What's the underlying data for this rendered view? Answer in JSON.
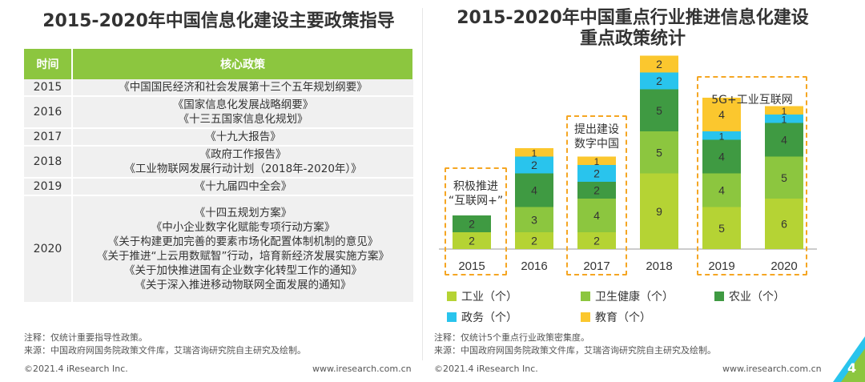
{
  "left": {
    "title": "2015-2020年中国信息化建设主要政策指导",
    "table": {
      "headers": [
        "时间",
        "核心政策"
      ],
      "rows": [
        {
          "year": "2015",
          "policies": [
            "《中国国民经济和社会发展第十三个五年规划纲要》"
          ]
        },
        {
          "year": "2016",
          "policies": [
            "《国家信息化发展战略纲要》",
            "《十三五国家信息化规划》"
          ]
        },
        {
          "year": "2017",
          "policies": [
            "《十九大报告》"
          ]
        },
        {
          "year": "2018",
          "policies": [
            "《政府工作报告》",
            "《工业物联网发展行动计划（2018年-2020年）》"
          ]
        },
        {
          "year": "2019",
          "policies": [
            "《十九届四中全会》"
          ]
        },
        {
          "year": "2020",
          "policies": [
            "《十四五规划方案》",
            "《中小企业数字化赋能专项行动方案》",
            "《关于构建更加完善的要素市场化配置体制机制的意见》",
            "《关于推进“上云用数赋智”行动，培育新经济发展实施方案》",
            "《关于加快推进国有企业数字化转型工作的通知》",
            "《关于深入推进移动物联网全面发展的通知》"
          ]
        }
      ]
    },
    "note": "注释：仅统计重要指导性政策。",
    "source": "来源：中国政府网国务院政策文件库，艾瑞咨询研究院自主研究及绘制。",
    "copyright": "©2021.4 iResearch Inc.",
    "website": "www.iresearch.com.cn"
  },
  "right": {
    "title_line1": "2015-2020年中国重点行业推进信息化建设",
    "title_line2": "重点政策统计",
    "note": "注释：仅统计5个重点行业政策密集度。",
    "source": "来源：中国政府网国务院政策文件库，艾瑞咨询研究院自主研究及绘制。",
    "copyright": "©2021.4 iResearch Inc.",
    "website": "www.iresearch.com.cn",
    "page_number": "4"
  },
  "chart_data": {
    "type": "bar",
    "stacked": true,
    "title": "2015-2020年中国重点行业推进信息化建设重点政策统计",
    "categories": [
      "2015",
      "2016",
      "2017",
      "2018",
      "2019",
      "2020"
    ],
    "series": [
      {
        "name": "工业（个）",
        "color": "#b5d334",
        "values": [
          2,
          2,
          2,
          9,
          5,
          6
        ]
      },
      {
        "name": "卫生健康（个）",
        "color": "#8cc63f",
        "values": [
          0,
          3,
          4,
          5,
          4,
          5
        ]
      },
      {
        "name": "农业（个）",
        "color": "#3f9a42",
        "values": [
          2,
          4,
          2,
          5,
          4,
          4
        ]
      },
      {
        "name": "政务（个）",
        "color": "#29c4ed",
        "values": [
          0,
          2,
          2,
          2,
          1,
          1
        ]
      },
      {
        "name": "教育（个）",
        "color": "#fbc72e",
        "values": [
          0,
          1,
          1,
          2,
          4,
          1
        ]
      }
    ],
    "annotations": [
      {
        "text": "积极推进“互联网+”",
        "lines": [
          "积极推进",
          "“互联网+”"
        ],
        "categories": [
          "2015"
        ]
      },
      {
        "text": "提出建设数字中国",
        "lines": [
          "提出建设",
          "数字中国"
        ],
        "categories": [
          "2017"
        ]
      },
      {
        "text": "5G+工业互联网",
        "lines": [
          "5G+工业互联网"
        ],
        "categories": [
          "2019",
          "2020"
        ]
      }
    ],
    "legend": "bottom"
  }
}
